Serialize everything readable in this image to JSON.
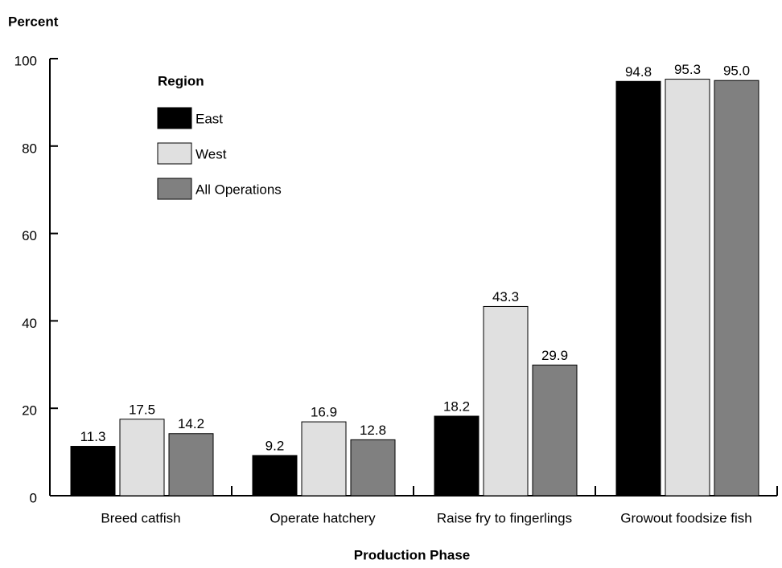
{
  "chart_data": {
    "type": "bar",
    "y_label": "Percent",
    "x_label": "Production Phase",
    "legend_title": "Region",
    "categories": [
      "Breed catfish",
      "Operate hatchery",
      "Raise fry to fingerlings",
      "Growout foodsize fish"
    ],
    "series": [
      {
        "name": "East",
        "color": "#000000",
        "values": [
          11.3,
          9.2,
          18.2,
          94.8
        ],
        "value_labels": [
          "11.3",
          "9.2",
          "18.2",
          "94.8"
        ]
      },
      {
        "name": "West",
        "color": "#e0e0e0",
        "values": [
          17.5,
          16.9,
          43.3,
          95.3
        ],
        "value_labels": [
          "17.5",
          "16.9",
          "43.3",
          "95.3"
        ]
      },
      {
        "name": "All Operations",
        "color": "#808080",
        "values": [
          14.2,
          12.8,
          29.9,
          95.0
        ],
        "value_labels": [
          "14.2",
          "12.8",
          "29.9",
          "95.0"
        ]
      }
    ],
    "ylim": [
      0,
      100
    ],
    "yticks": [
      0,
      20,
      40,
      60,
      80,
      100
    ],
    "grid": false
  }
}
